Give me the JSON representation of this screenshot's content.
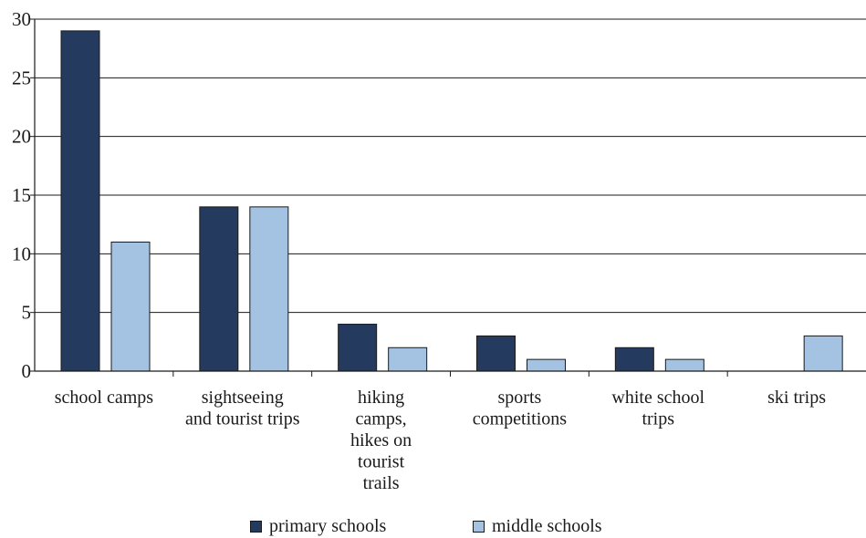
{
  "chart_data": {
    "type": "bar",
    "title": "",
    "xlabel": "",
    "ylabel": "",
    "ylim": [
      0,
      30
    ],
    "yticks": [
      0,
      5,
      10,
      15,
      20,
      25,
      30
    ],
    "grid": true,
    "legend_position": "bottom",
    "categories": [
      [
        "school camps"
      ],
      [
        "sightseeing",
        "and tourist trips"
      ],
      [
        "hiking",
        "camps,",
        "hikes on",
        "tourist",
        "trails"
      ],
      [
        "sports",
        "competitions"
      ],
      [
        "white school",
        "trips"
      ],
      [
        "ski trips"
      ]
    ],
    "series": [
      {
        "name": "primary schools",
        "color": "#243a5e",
        "values": [
          29,
          14,
          4,
          3,
          2,
          0
        ]
      },
      {
        "name": "middle schools",
        "color": "#a4c2e2",
        "values": [
          11,
          14,
          2,
          1,
          1,
          3
        ]
      }
    ]
  }
}
